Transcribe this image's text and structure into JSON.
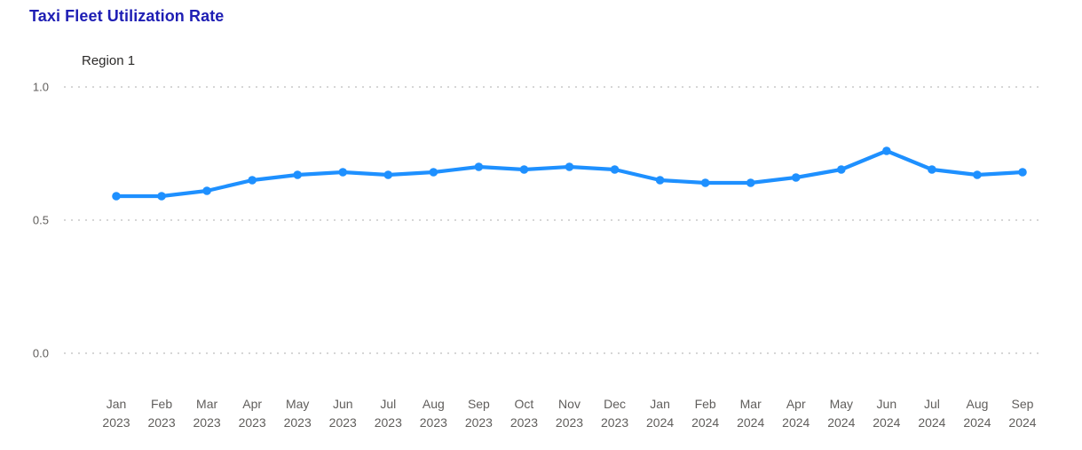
{
  "header": {
    "title": "Taxi Fleet Utilization Rate"
  },
  "legend": {
    "label": "Region 1",
    "position": "top-left"
  },
  "chart_data": {
    "type": "line",
    "title": "Taxi Fleet Utilization Rate",
    "series": [
      {
        "name": "Region 1",
        "values": [
          0.59,
          0.59,
          0.61,
          0.65,
          0.67,
          0.68,
          0.67,
          0.68,
          0.7,
          0.69,
          0.7,
          0.69,
          0.65,
          0.64,
          0.64,
          0.66,
          0.69,
          0.76,
          0.69,
          0.67,
          0.68
        ]
      }
    ],
    "categories": [
      "Jan 2023",
      "Feb 2023",
      "Mar 2023",
      "Apr 2023",
      "May 2023",
      "Jun 2023",
      "Jul 2023",
      "Aug 2023",
      "Sep 2023",
      "Oct 2023",
      "Nov 2023",
      "Dec 2023",
      "Jan 2024",
      "Feb 2024",
      "Mar 2024",
      "Apr 2024",
      "May 2024",
      "Jun 2024",
      "Jul 2024",
      "Aug 2024",
      "Sep 2024"
    ],
    "xlabel": "",
    "ylabel": "",
    "ylim": [
      0.0,
      1.0
    ],
    "yticks": [
      1.0,
      0.5,
      0.0
    ],
    "ytick_labels": [
      "1.0",
      "0.5",
      "0.0"
    ],
    "grid": "horizontal-dotted",
    "legend_position": "top-left"
  },
  "style": {
    "title_color": "#1e1eb4",
    "line_color": "#1e90ff",
    "marker_color": "#1e90ff",
    "grid_color": "#c9c9c9",
    "axis_label_color": "#605e5c",
    "legend_color": "#2b2a29",
    "background": "#ffffff"
  }
}
